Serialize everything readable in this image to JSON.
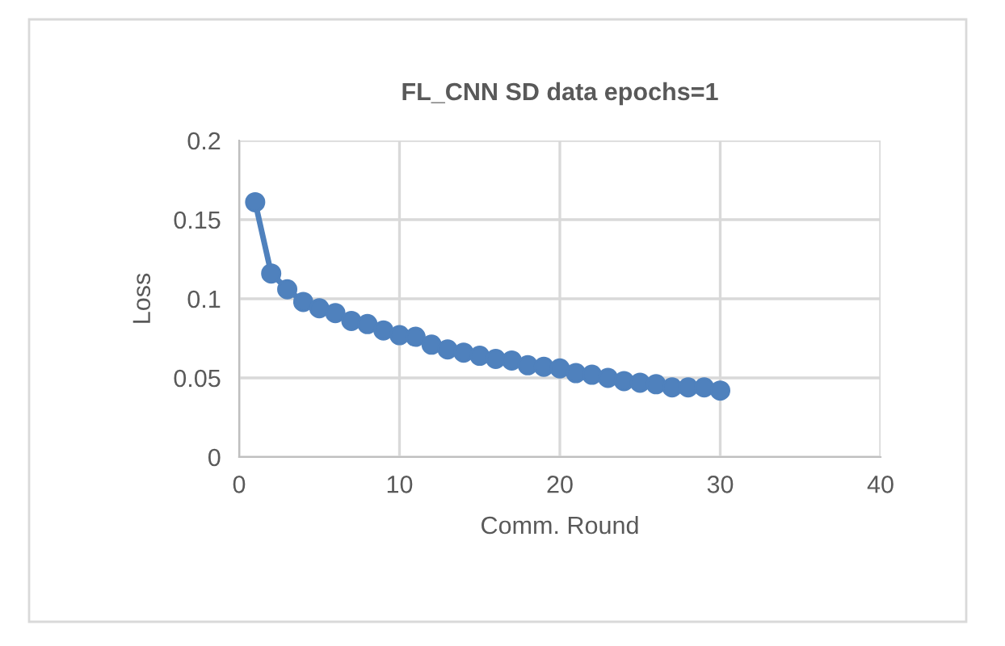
{
  "chart_data": {
    "type": "line",
    "title": "FL_CNN SD data epochs=1",
    "xlabel": "Comm. Round",
    "ylabel": "Loss",
    "x": [
      1,
      2,
      3,
      4,
      5,
      6,
      7,
      8,
      9,
      10,
      11,
      12,
      13,
      14,
      15,
      16,
      17,
      18,
      19,
      20,
      21,
      22,
      23,
      24,
      25,
      26,
      27,
      28,
      29,
      30
    ],
    "series": [
      {
        "color": "#4f81bd",
        "values": [
          0.161,
          0.116,
          0.106,
          0.098,
          0.094,
          0.091,
          0.086,
          0.084,
          0.08,
          0.077,
          0.076,
          0.071,
          0.068,
          0.066,
          0.064,
          0.062,
          0.061,
          0.058,
          0.057,
          0.056,
          0.053,
          0.052,
          0.05,
          0.048,
          0.047,
          0.046,
          0.044,
          0.044,
          0.044,
          0.042
        ]
      }
    ],
    "xlim": [
      0,
      40
    ],
    "xticks": [
      0,
      10,
      20,
      30,
      40
    ],
    "ylim": [
      0,
      0.2
    ],
    "yticks": [
      0,
      0.05,
      0.1,
      0.15,
      0.2
    ],
    "grid": true,
    "marker": "circle",
    "line_style": "solid"
  }
}
